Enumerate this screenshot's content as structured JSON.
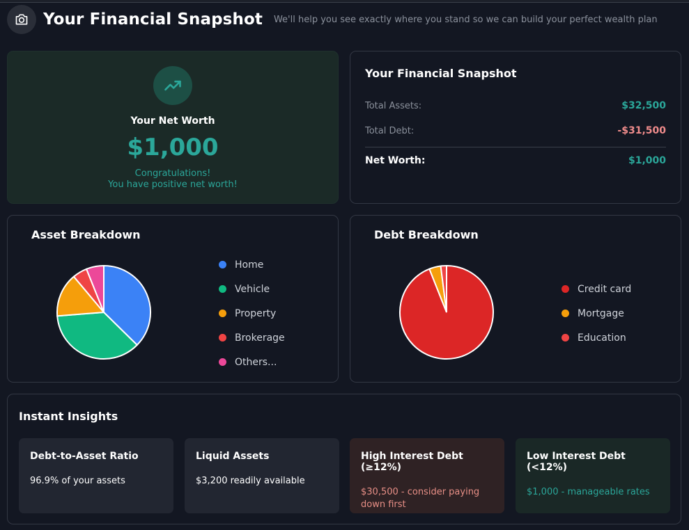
{
  "header": {
    "title": "Your Financial Snapshot",
    "subtitle": "We'll help you see exactly where you stand so we can build your perfect wealth plan",
    "icon": "camera-icon"
  },
  "net_worth": {
    "label": "Your Net Worth",
    "value": "$1,000",
    "congrats_line1": "Congratulations!",
    "congrats_line2": "You have positive net worth!",
    "icon": "trending-up-icon"
  },
  "snapshot": {
    "title": "Your Financial Snapshot",
    "total_assets_label": "Total Assets:",
    "total_assets_value": "$32,500",
    "total_debt_label": "Total Debt:",
    "total_debt_value": "-$31,500",
    "net_worth_label": "Net Worth:",
    "net_worth_value": "$1,000"
  },
  "asset_breakdown": {
    "title": "Asset Breakdown",
    "legend": [
      {
        "label": "Home",
        "color": "#3b82f6"
      },
      {
        "label": "Vehicle",
        "color": "#10b981"
      },
      {
        "label": "Property",
        "color": "#f59e0b"
      },
      {
        "label": "Brokerage",
        "color": "#ef4444"
      },
      {
        "label": "Others...",
        "color": "#ec4899"
      }
    ]
  },
  "debt_breakdown": {
    "title": "Debt Breakdown",
    "legend": [
      {
        "label": "Credit card",
        "color": "#dc2626"
      },
      {
        "label": "Mortgage",
        "color": "#f59e0b"
      },
      {
        "label": "Education",
        "color": "#ef4444"
      }
    ]
  },
  "chart_data": [
    {
      "type": "pie",
      "categories": [
        "Home",
        "Vehicle",
        "Property",
        "Brokerage",
        "Others..."
      ],
      "values": [
        37,
        36,
        15,
        5,
        6
      ],
      "colors": [
        "#3b82f6",
        "#10b981",
        "#f59e0b",
        "#ef4444",
        "#ec4899"
      ],
      "legend": "right"
    },
    {
      "type": "pie",
      "categories": [
        "Credit card",
        "Mortgage",
        "Education"
      ],
      "values": [
        94,
        4,
        2
      ],
      "colors": [
        "#dc2626",
        "#f59e0b",
        "#ef4444"
      ],
      "legend": "right"
    }
  ],
  "insights": {
    "title": "Instant Insights",
    "tiles": [
      {
        "title": "Debt-to-Asset Ratio",
        "desc": "96.9% of your assets"
      },
      {
        "title": "Liquid Assets",
        "desc": "$3,200 readily available"
      },
      {
        "title": "High Interest Debt (≥12%)",
        "desc": "$30,500 - consider paying down first"
      },
      {
        "title": "Low Interest Debt (<12%)",
        "desc": "$1,000 - manageable rates"
      }
    ]
  }
}
